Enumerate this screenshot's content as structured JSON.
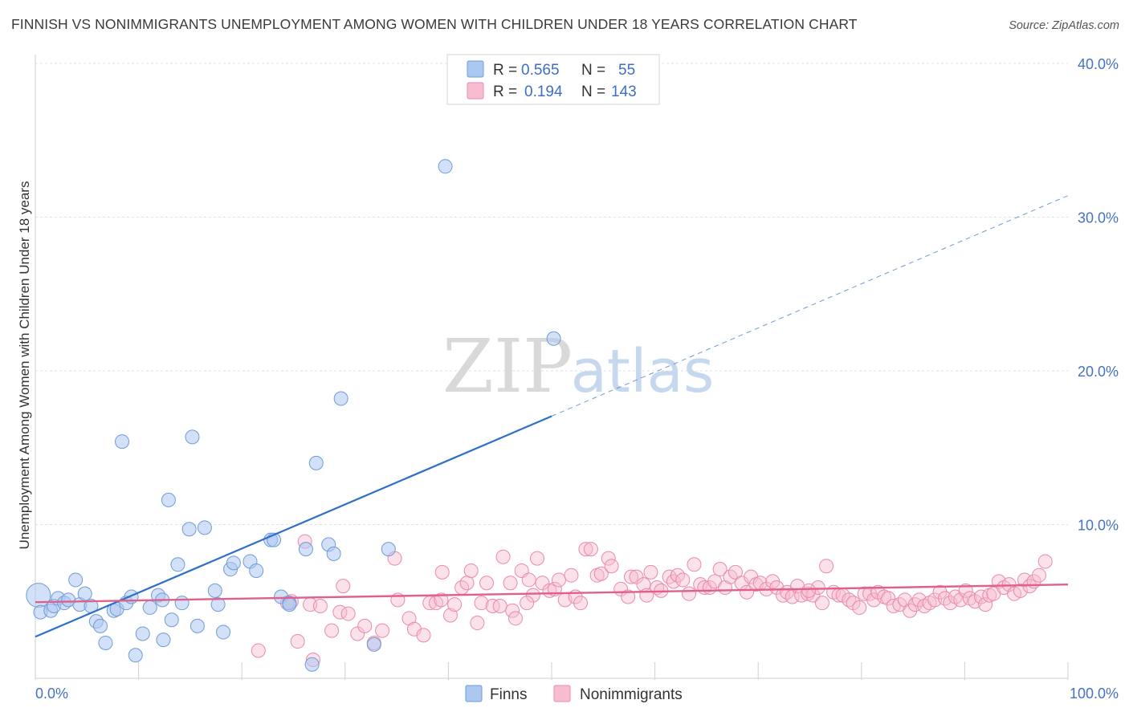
{
  "title": "FINNISH VS NONIMMIGRANTS UNEMPLOYMENT AMONG WOMEN WITH CHILDREN UNDER 18 YEARS CORRELATION CHART",
  "source": "Source: ZipAtlas.com",
  "watermark": {
    "zip": "ZIP",
    "atlas": "atlas"
  },
  "colors": {
    "finns_fill": "#adc8f0",
    "finns_stroke": "#6f9bd8",
    "finns_line": "#2e6fcc",
    "non_fill": "#f7bcd0",
    "non_stroke": "#e98aaa",
    "non_line": "#e0608a",
    "tick_text": "#4472c4",
    "grid": "#e2e2e2"
  },
  "legend": {
    "rows": [
      {
        "r_label": "R =",
        "r_value": "0.565",
        "n_label": "N =",
        "n_value": "55"
      },
      {
        "r_label": "R =",
        "r_value": "0.194",
        "n_label": "N =",
        "n_value": "143"
      }
    ]
  },
  "chart_data": {
    "type": "scatter",
    "title": "FINNISH VS NONIMMIGRANTS UNEMPLOYMENT AMONG WOMEN WITH CHILDREN UNDER 18 YEARS CORRELATION CHART",
    "xlabel": "",
    "ylabel": "Unemployment Among Women with Children Under 18 years",
    "xlim": [
      0,
      100
    ],
    "ylim": [
      0,
      41
    ],
    "x_tick_labels": [
      {
        "value": 0,
        "label": "0.0%"
      },
      {
        "value": 100,
        "label": "100.0%"
      }
    ],
    "y_ticks": [
      {
        "value": 10,
        "label": "10.0%"
      },
      {
        "value": 20,
        "label": "20.0%"
      },
      {
        "value": 30,
        "label": "30.0%"
      },
      {
        "value": 40,
        "label": "40.0%"
      }
    ],
    "grid": true,
    "legend_position": "top-center",
    "series": [
      {
        "name": "Finns",
        "r": 0.565,
        "n": 55,
        "trend": {
          "x0": 0,
          "y0": 2.7,
          "x_solid_end": 50,
          "x1": 100,
          "y1": 31.4
        },
        "points": [
          [
            0.3,
            5.4
          ],
          [
            0.5,
            4.3
          ],
          [
            1.5,
            4.4
          ],
          [
            1.8,
            4.7
          ],
          [
            2.2,
            5.2
          ],
          [
            2.8,
            4.9
          ],
          [
            3.2,
            5.1
          ],
          [
            3.9,
            6.4
          ],
          [
            4.3,
            4.8
          ],
          [
            4.8,
            5.5
          ],
          [
            5.4,
            4.7
          ],
          [
            5.9,
            3.7
          ],
          [
            6.3,
            3.4
          ],
          [
            6.8,
            2.3
          ],
          [
            7.6,
            4.4
          ],
          [
            7.9,
            4.5
          ],
          [
            8.4,
            15.4
          ],
          [
            8.8,
            4.9
          ],
          [
            9.3,
            5.3
          ],
          [
            9.7,
            1.5
          ],
          [
            10.4,
            2.9
          ],
          [
            11.1,
            4.6
          ],
          [
            11.9,
            5.4
          ],
          [
            12.3,
            5.1
          ],
          [
            12.4,
            2.5
          ],
          [
            12.9,
            11.6
          ],
          [
            13.2,
            3.8
          ],
          [
            13.8,
            7.4
          ],
          [
            14.2,
            4.9
          ],
          [
            14.9,
            9.7
          ],
          [
            15.2,
            15.7
          ],
          [
            15.7,
            3.4
          ],
          [
            16.4,
            9.8
          ],
          [
            17.4,
            5.7
          ],
          [
            17.7,
            4.8
          ],
          [
            18.2,
            3.0
          ],
          [
            18.9,
            7.1
          ],
          [
            19.2,
            7.5
          ],
          [
            20.8,
            7.6
          ],
          [
            21.4,
            7.0
          ],
          [
            22.8,
            9.0
          ],
          [
            23.1,
            9.0
          ],
          [
            23.8,
            5.3
          ],
          [
            24.6,
            4.9
          ],
          [
            26.2,
            8.4
          ],
          [
            26.8,
            0.9
          ],
          [
            27.2,
            14.0
          ],
          [
            28.4,
            8.7
          ],
          [
            28.9,
            8.1
          ],
          [
            29.6,
            18.2
          ],
          [
            32.8,
            2.2
          ],
          [
            34.2,
            8.4
          ],
          [
            39.7,
            33.3
          ],
          [
            50.2,
            22.1
          ],
          [
            24.6,
            4.8
          ]
        ]
      },
      {
        "name": "Nonimmigrants",
        "r": 0.194,
        "n": 143,
        "trend": {
          "x0": 0,
          "y0": 4.95,
          "x1": 100,
          "y1": 6.1
        },
        "points": [
          [
            21.6,
            1.8
          ],
          [
            24.8,
            5.0
          ],
          [
            25.4,
            2.4
          ],
          [
            26.1,
            8.9
          ],
          [
            26.6,
            4.8
          ],
          [
            26.9,
            1.2
          ],
          [
            27.6,
            4.7
          ],
          [
            28.7,
            3.1
          ],
          [
            29.5,
            4.3
          ],
          [
            29.8,
            6.0
          ],
          [
            30.3,
            4.2
          ],
          [
            31.2,
            2.9
          ],
          [
            31.9,
            3.4
          ],
          [
            32.8,
            2.3
          ],
          [
            33.6,
            3.1
          ],
          [
            34.8,
            7.8
          ],
          [
            35.1,
            5.1
          ],
          [
            36.2,
            3.9
          ],
          [
            36.7,
            3.2
          ],
          [
            37.6,
            2.8
          ],
          [
            38.2,
            4.9
          ],
          [
            38.8,
            4.9
          ],
          [
            39.3,
            5.1
          ],
          [
            39.4,
            6.9
          ],
          [
            40.2,
            4.1
          ],
          [
            40.6,
            4.8
          ],
          [
            41.3,
            5.9
          ],
          [
            41.8,
            6.2
          ],
          [
            42.2,
            7.0
          ],
          [
            42.8,
            3.6
          ],
          [
            43.2,
            4.9
          ],
          [
            43.7,
            6.2
          ],
          [
            44.3,
            4.7
          ],
          [
            45.0,
            4.7
          ],
          [
            45.3,
            7.9
          ],
          [
            46.0,
            6.2
          ],
          [
            46.2,
            4.4
          ],
          [
            46.5,
            3.9
          ],
          [
            47.1,
            7.0
          ],
          [
            47.8,
            6.4
          ],
          [
            48.2,
            5.4
          ],
          [
            48.6,
            7.8
          ],
          [
            49.1,
            6.2
          ],
          [
            49.8,
            5.7
          ],
          [
            50.3,
            5.8
          ],
          [
            50.7,
            6.4
          ],
          [
            51.3,
            5.1
          ],
          [
            51.9,
            6.7
          ],
          [
            52.3,
            5.3
          ],
          [
            52.8,
            4.9
          ],
          [
            53.3,
            8.4
          ],
          [
            53.8,
            8.4
          ],
          [
            54.4,
            6.7
          ],
          [
            54.8,
            6.8
          ],
          [
            55.5,
            7.8
          ],
          [
            55.8,
            7.3
          ],
          [
            56.7,
            5.8
          ],
          [
            57.4,
            5.3
          ],
          [
            57.7,
            6.6
          ],
          [
            58.2,
            6.6
          ],
          [
            58.9,
            6.1
          ],
          [
            59.2,
            5.4
          ],
          [
            59.6,
            6.9
          ],
          [
            60.2,
            5.9
          ],
          [
            60.6,
            5.7
          ],
          [
            61.4,
            6.6
          ],
          [
            61.8,
            6.3
          ],
          [
            62.2,
            6.7
          ],
          [
            62.7,
            6.4
          ],
          [
            63.3,
            5.5
          ],
          [
            63.8,
            7.4
          ],
          [
            64.4,
            6.1
          ],
          [
            64.8,
            5.9
          ],
          [
            65.3,
            5.9
          ],
          [
            65.8,
            6.3
          ],
          [
            66.3,
            7.1
          ],
          [
            66.8,
            5.9
          ],
          [
            67.3,
            6.6
          ],
          [
            67.8,
            6.9
          ],
          [
            68.4,
            6.2
          ],
          [
            68.9,
            5.6
          ],
          [
            69.3,
            6.6
          ],
          [
            69.8,
            6.1
          ],
          [
            70.2,
            6.2
          ],
          [
            70.8,
            5.8
          ],
          [
            71.4,
            6.3
          ],
          [
            71.8,
            5.9
          ],
          [
            72.4,
            5.4
          ],
          [
            72.8,
            5.6
          ],
          [
            73.3,
            5.3
          ],
          [
            73.8,
            6.0
          ],
          [
            74.2,
            5.4
          ],
          [
            74.8,
            5.5
          ],
          [
            75.3,
            5.4
          ],
          [
            75.8,
            5.9
          ],
          [
            76.2,
            4.9
          ],
          [
            76.6,
            7.3
          ],
          [
            77.3,
            5.6
          ],
          [
            77.8,
            5.4
          ],
          [
            78.2,
            5.4
          ],
          [
            78.8,
            5.1
          ],
          [
            79.2,
            4.9
          ],
          [
            79.8,
            4.6
          ],
          [
            80.3,
            5.5
          ],
          [
            80.8,
            5.5
          ],
          [
            81.2,
            5.1
          ],
          [
            81.6,
            5.6
          ],
          [
            82.2,
            5.3
          ],
          [
            82.6,
            5.2
          ],
          [
            83.1,
            4.7
          ],
          [
            83.7,
            4.8
          ],
          [
            84.2,
            5.1
          ],
          [
            84.7,
            4.4
          ],
          [
            85.2,
            4.8
          ],
          [
            85.6,
            5.1
          ],
          [
            86.1,
            4.7
          ],
          [
            86.6,
            4.9
          ],
          [
            87.1,
            5.1
          ],
          [
            87.6,
            5.6
          ],
          [
            88.1,
            5.2
          ],
          [
            88.6,
            4.9
          ],
          [
            89.1,
            5.3
          ],
          [
            89.6,
            5.1
          ],
          [
            90.1,
            5.7
          ],
          [
            90.5,
            5.2
          ],
          [
            91.0,
            5.0
          ],
          [
            91.6,
            5.3
          ],
          [
            92.0,
            4.8
          ],
          [
            92.4,
            5.4
          ],
          [
            92.8,
            5.5
          ],
          [
            93.3,
            6.3
          ],
          [
            93.8,
            5.9
          ],
          [
            94.3,
            6.1
          ],
          [
            94.8,
            5.5
          ],
          [
            95.4,
            5.7
          ],
          [
            95.8,
            6.4
          ],
          [
            96.3,
            6.0
          ],
          [
            96.7,
            6.3
          ],
          [
            97.2,
            6.7
          ],
          [
            97.8,
            7.6
          ],
          [
            47.6,
            4.9
          ],
          [
            74.9,
            5.7
          ],
          [
            24.4,
            4.9
          ]
        ]
      }
    ]
  },
  "bottom_legend": {
    "items": [
      "Finns",
      "Nonimmigrants"
    ]
  }
}
